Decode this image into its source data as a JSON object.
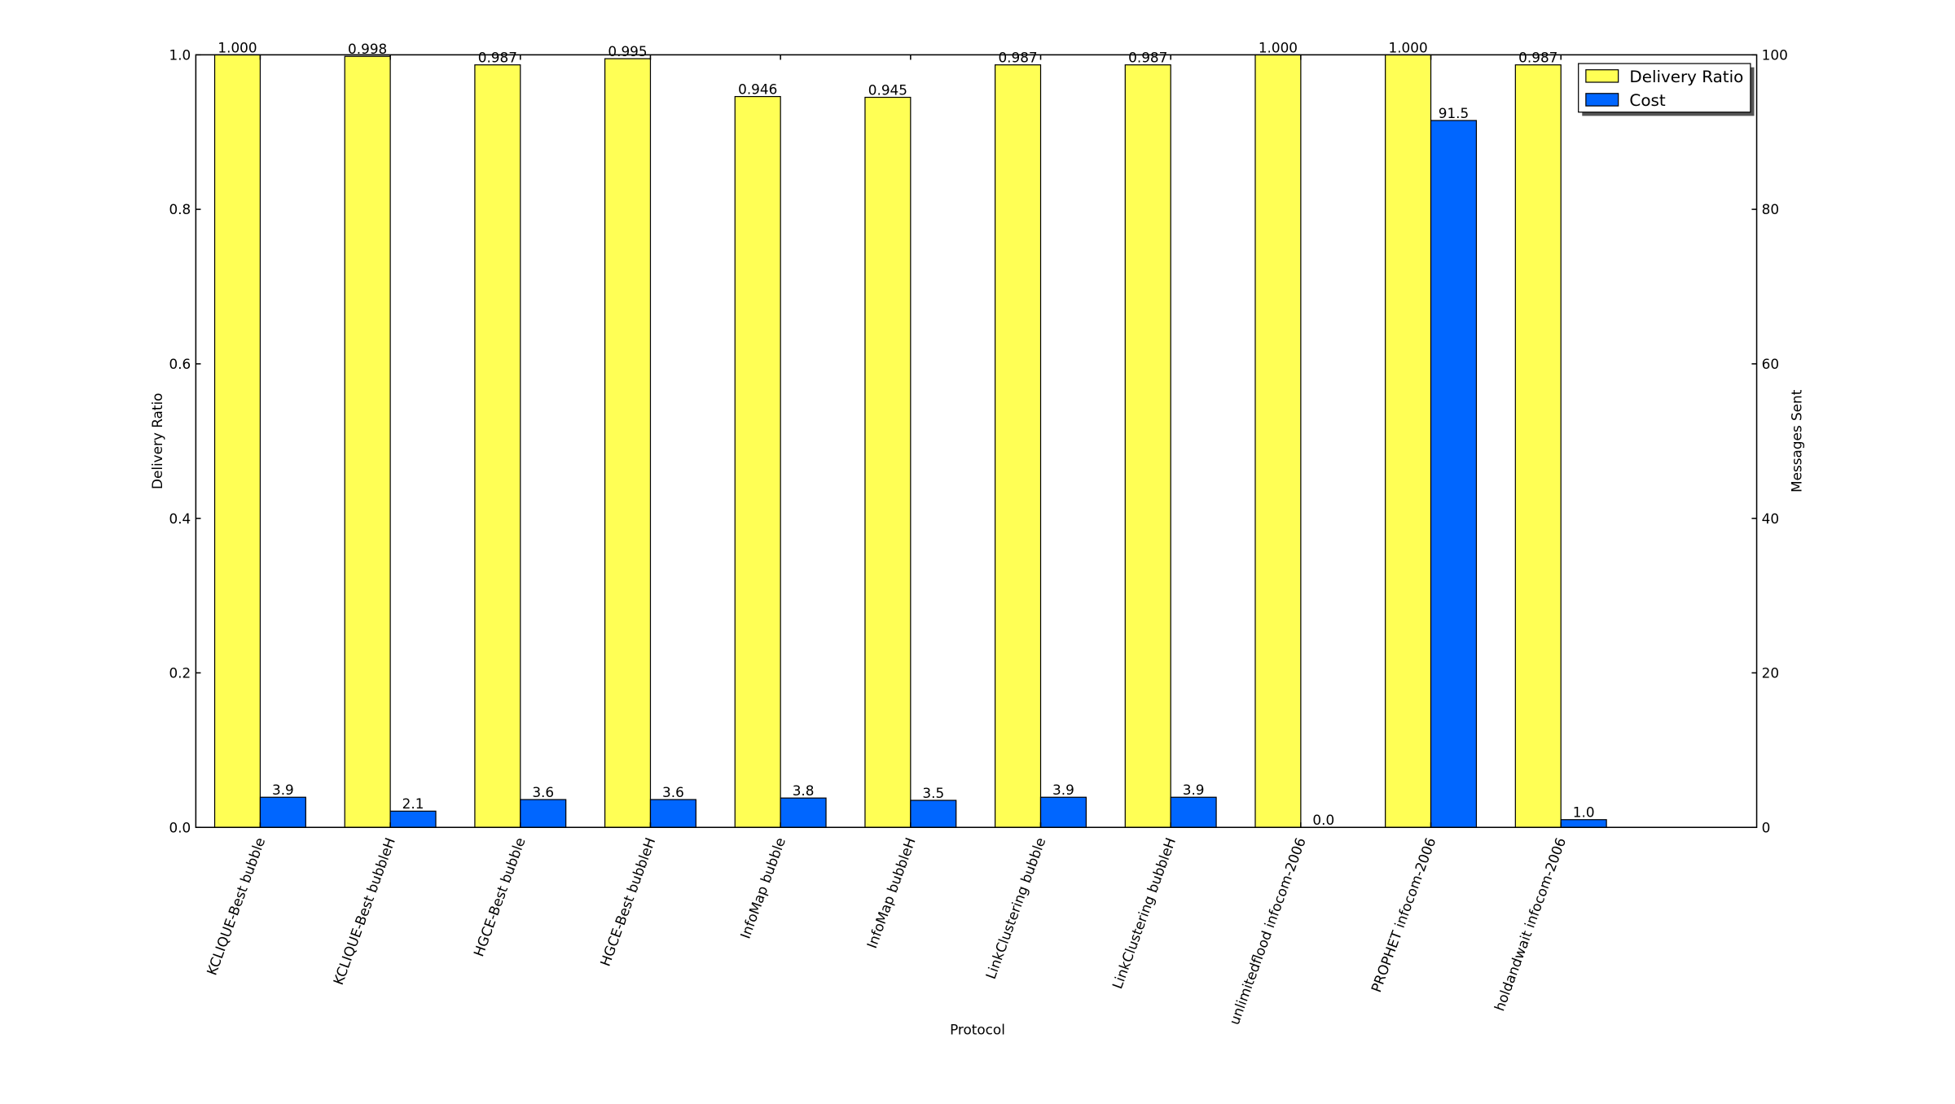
{
  "chart_data": {
    "type": "bar",
    "x_label": "Protocol",
    "y_label": "Delivery Ratio",
    "y2_label": "Messages Sent",
    "categories": [
      "KCLIQUE-Best bubble",
      "KCLIQUE-Best bubbleH",
      "HGCE-Best bubble",
      "HGCE-Best bubbleH",
      "InfoMap bubble",
      "InfoMap bubbleH",
      "LinkClustering bubble",
      "LinkClustering bubbleH",
      "unlimitedflood infocom-2006",
      "PROPHET infocom-2006",
      "holdandwait infocom-2006"
    ],
    "series": [
      {
        "name": "Delivery Ratio",
        "color": "#ffff55",
        "values": [
          1.0,
          0.998,
          0.987,
          0.995,
          0.946,
          0.945,
          0.987,
          0.987,
          1.0,
          1.0,
          0.987
        ],
        "value_labels": [
          "1.000",
          "0.998",
          "0.987",
          "0.995",
          "0.946",
          "0.945",
          "0.987",
          "0.987",
          "1.000",
          "1.000",
          "0.987"
        ]
      },
      {
        "name": "Cost",
        "color": "#0066ff",
        "axis": "y2",
        "values": [
          3.9,
          2.1,
          3.6,
          3.6,
          3.8,
          3.5,
          3.9,
          3.9,
          0,
          91.5,
          1.0
        ],
        "value_labels": [
          "3.9",
          "2.1",
          "3.6",
          "3.6",
          "3.8",
          "3.5",
          "3.9",
          "3.9",
          "0.0",
          "91.5",
          "1.0"
        ]
      }
    ],
    "ylim": [
      0,
      1
    ],
    "yticks": [
      {
        "value": 0,
        "label": "0.0"
      },
      0.2,
      0.4,
      0.6,
      0.8,
      {
        "value": 1,
        "label": "1.0"
      }
    ],
    "y2lim": [
      0,
      100
    ],
    "y2ticks": [
      0,
      20,
      40,
      60,
      80,
      100
    ],
    "legend": "upper right"
  }
}
